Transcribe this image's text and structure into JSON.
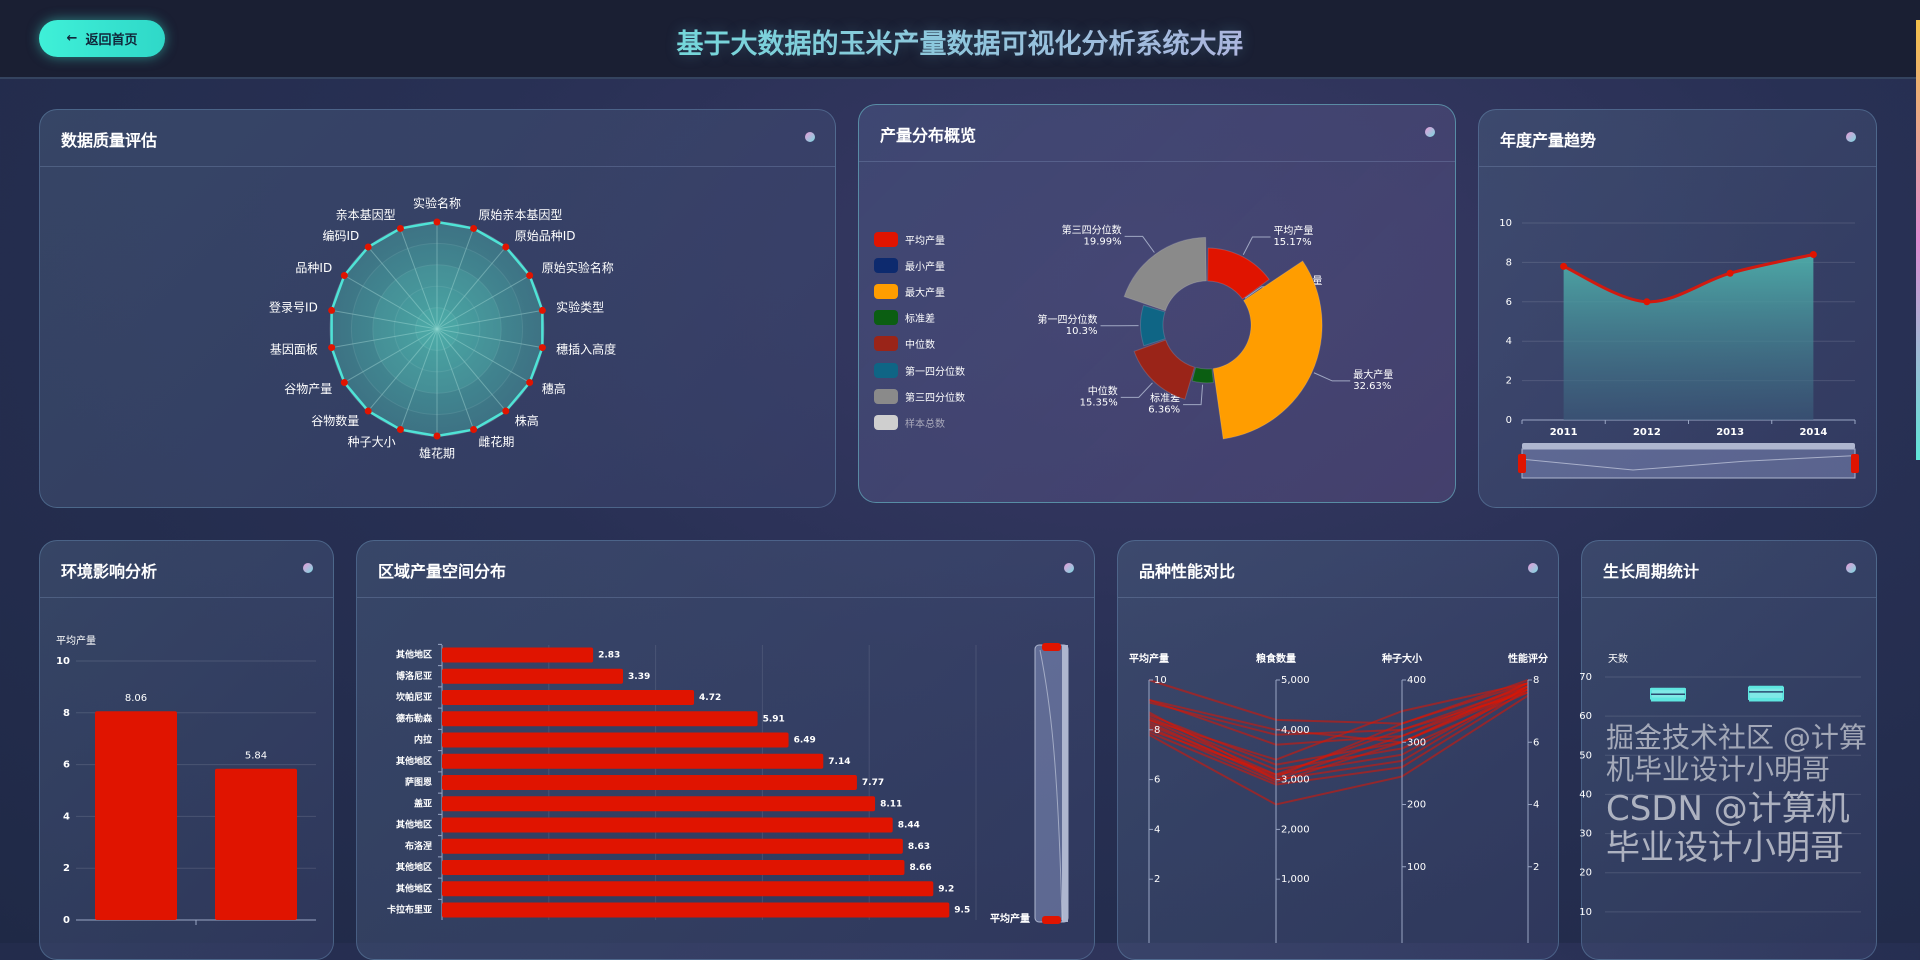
{
  "header": {
    "back_label": "返回首页",
    "back_icon": "arrow-left-icon",
    "title": "基于大数据的玉米产量数据可视化分析系统大屏"
  },
  "panels": {
    "quality": "数据质量评估",
    "distribution": "产量分布概览",
    "trend": "年度产量趋势",
    "environment": "环境影响分析",
    "region": "区域产量空间分布",
    "variety": "品种性能对比",
    "growth": "生长周期统计"
  },
  "colors": {
    "accent": "#3ff0d8",
    "bar": "#e01400",
    "radar_line": "#4fe3d6"
  },
  "watermark": {
    "line1": "CSDN @计算机毕业设计小明哥",
    "line2": "掘金技术社区 @计算机毕业设计小明哥"
  },
  "chart_data": [
    {
      "type": "radar",
      "indicators": [
        "实验名称",
        "原始亲本基因型",
        "原始品种ID",
        "原始实验名称",
        "实验类型",
        "穗插入高度",
        "穗高",
        "株高",
        "雌花期",
        "雄花期",
        "种子大小",
        "谷物数量",
        "谷物产量",
        "基因面板",
        "登录号ID",
        "品种ID",
        "编码ID",
        "亲本基因型"
      ],
      "values": [
        100,
        100,
        100,
        100,
        100,
        100,
        100,
        100,
        100,
        100,
        100,
        100,
        100,
        100,
        100,
        100,
        100,
        100
      ],
      "max": 100
    },
    {
      "type": "pie",
      "rose": true,
      "legend": [
        "平均产量",
        "最小产量",
        "最大产量",
        "标准差",
        "中位数",
        "第一四分位数",
        "第三四分位数",
        "样本总数"
      ],
      "legend_disabled": [
        "样本总数"
      ],
      "slices": [
        {
          "name": "平均产量",
          "percent": "15.17%",
          "value": 15.17,
          "color": "#e01400"
        },
        {
          "name": "最小产量",
          "percent": "0.2%",
          "value": 0.2,
          "color": "#0d2a6e"
        },
        {
          "name": "最大产量",
          "percent": "32.63%",
          "value": 32.63,
          "color": "#ff9d00"
        },
        {
          "name": "标准差",
          "percent": "6.36%",
          "value": 6.36,
          "color": "#0b5e12"
        },
        {
          "name": "中位数",
          "percent": "15.35%",
          "value": 15.35,
          "color": "#9a2418"
        },
        {
          "name": "第一四分位数",
          "percent": "10.3%",
          "value": 10.3,
          "color": "#0f6585"
        },
        {
          "name": "第三四分位数",
          "percent": "19.99%",
          "value": 19.99,
          "color": "#8a8a8a"
        }
      ],
      "disabled_color": "#cfcfcf"
    },
    {
      "type": "area",
      "categories": [
        "2011",
        "2012",
        "2013",
        "2014"
      ],
      "values": [
        7.8,
        6.0,
        7.45,
        8.4
      ],
      "ylim": [
        0,
        10
      ],
      "yticks": [
        "0",
        "2",
        "4",
        "6",
        "8",
        "10"
      ],
      "smooth": true,
      "datazoom": true
    },
    {
      "type": "bar",
      "ylabel": "平均产量",
      "values": [
        8.06,
        5.84
      ],
      "value_labels": [
        "8.06",
        "5.84"
      ],
      "ylim": [
        0,
        10
      ],
      "yticks": [
        "0",
        "2",
        "4",
        "6",
        "8",
        "10"
      ]
    },
    {
      "type": "bar",
      "orientation": "horizontal",
      "categories": [
        "其他地区",
        "博洛尼亚",
        "坎帕尼亚",
        "德布勒森",
        "内拉",
        "其他地区",
        "萨图恩",
        "盖亚",
        "其他地区",
        "布洛涅",
        "其他地区",
        "其他地区",
        "卡拉布里亚"
      ],
      "values": [
        2.83,
        3.39,
        4.72,
        5.91,
        6.49,
        7.14,
        7.77,
        8.11,
        8.44,
        8.63,
        8.66,
        9.2,
        9.5
      ],
      "value_labels": [
        "2.83",
        "3.39",
        "4.72",
        "5.91",
        "6.49",
        "7.14",
        "7.77",
        "8.11",
        "8.44",
        "8.63",
        "8.66",
        "9.2",
        "9.5"
      ],
      "xlim": [
        0,
        10
      ],
      "datazoom_label": "平均产量"
    },
    {
      "type": "parallel",
      "axes": [
        {
          "name": "平均产量",
          "range": [
            0,
            10
          ],
          "ticks": [
            "2",
            "4",
            "6",
            "8",
            "10"
          ],
          "tickvals": [
            2,
            4,
            6,
            8,
            10
          ]
        },
        {
          "name": "粮食数量",
          "range": [
            0,
            5000
          ],
          "ticks": [
            "1,000",
            "2,000",
            "3,000",
            "4,000",
            "5,000"
          ],
          "tickvals": [
            1000,
            2000,
            3000,
            4000,
            5000
          ]
        },
        {
          "name": "种子大小",
          "range": [
            0,
            400
          ],
          "ticks": [
            "100",
            "200",
            "300",
            "400"
          ],
          "tickvals": [
            100,
            200,
            300,
            400
          ]
        },
        {
          "name": "性能评分",
          "range": [
            0,
            8
          ],
          "ticks": [
            "2",
            "4",
            "6",
            "8"
          ],
          "tickvals": [
            2,
            4,
            6,
            8
          ]
        }
      ],
      "lines": [
        [
          10,
          4200,
          330,
          8
        ],
        [
          9.2,
          4000,
          300,
          7.9
        ],
        [
          9.1,
          3900,
          320,
          7.8
        ],
        [
          9.2,
          3700,
          310,
          7.9
        ],
        [
          8.6,
          3300,
          300,
          7.7
        ],
        [
          8.5,
          3200,
          290,
          7.6
        ],
        [
          8.4,
          3100,
          280,
          7.8
        ],
        [
          8.3,
          3000,
          310,
          7.7
        ],
        [
          8.2,
          3050,
          330,
          7.9
        ],
        [
          8.1,
          2950,
          300,
          7.8
        ],
        [
          8.0,
          3100,
          320,
          7.6
        ],
        [
          7.9,
          2900,
          260,
          7.7
        ],
        [
          7.8,
          2500,
          245,
          7.5
        ],
        [
          8.4,
          3400,
          350,
          7.9
        ],
        [
          8.7,
          3000,
          270,
          7.8
        ]
      ]
    },
    {
      "type": "boxplot",
      "ylabel": "天数",
      "ylim": [
        0,
        70
      ],
      "yticks": [
        "10",
        "20",
        "30",
        "40",
        "50",
        "60",
        "70"
      ],
      "boxes": [
        [
          64,
          64.5,
          65.6,
          66.9,
          67
        ],
        [
          64,
          64.4,
          66.2,
          67.3,
          67.5
        ]
      ]
    }
  ]
}
